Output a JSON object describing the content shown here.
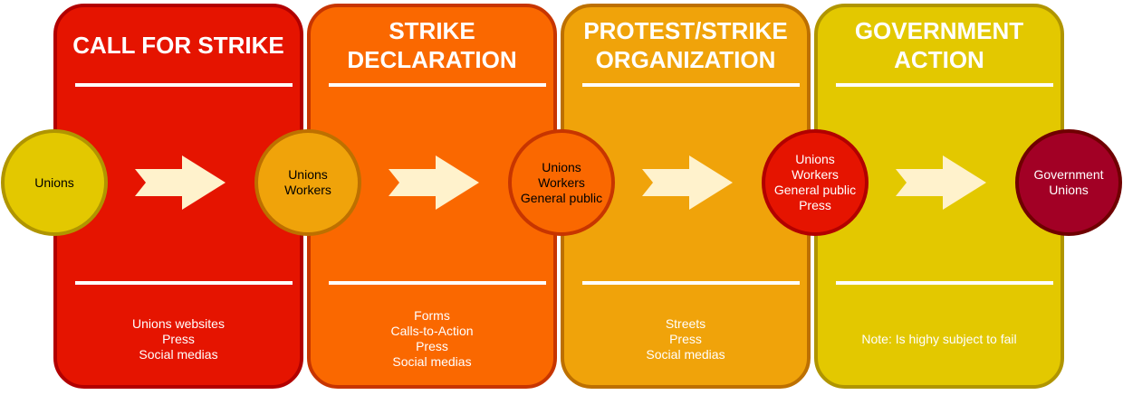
{
  "stages": [
    {
      "title": "CALL FOR STRIKE",
      "note": "Unions websites\nPress\nSocial medias"
    },
    {
      "title": "STRIKE\nDECLARATION",
      "note": "Forms\nCalls-to-Action\nPress\nSocial medias"
    },
    {
      "title": "PROTEST/STRIKE\nORGANIZATION",
      "note": "Streets\nPress\nSocial medias"
    },
    {
      "title": "GOVERNMENT\nACTION",
      "note": "Note: Is highy subject to fail"
    }
  ],
  "actors": [
    "Unions",
    "Unions\nWorkers",
    "Unions\nWorkers\nGeneral public",
    "Unions\nWorkers\nGeneral public\nPress",
    "Government\nUnions"
  ],
  "colors": {
    "call_for_strike": "#e51400",
    "strike_declaration": "#fa6800",
    "protest_organization": "#f0a30a",
    "government_action": "#e3c800",
    "government_node": "#a20025",
    "arrow": "#fff2cc"
  }
}
